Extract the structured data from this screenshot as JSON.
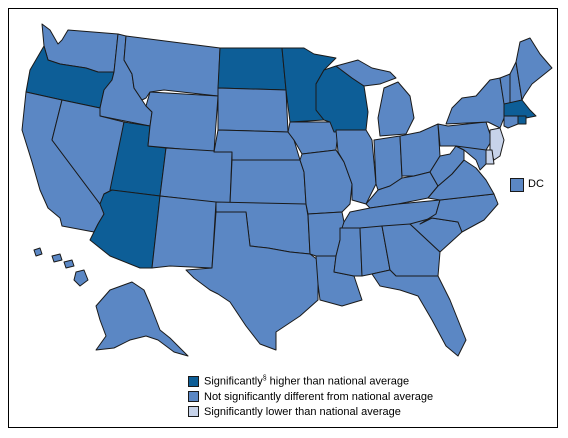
{
  "colors": {
    "higher": "#0d5e97",
    "not_different": "#5b87c4",
    "lower": "#c7d3ea",
    "outline": "#1a1a1a"
  },
  "legend": {
    "higher_prefix": "Significantly",
    "higher_superscript": "§",
    "higher_suffix": " higher than national average",
    "not_different": "Not significantly different from national average",
    "lower": "Significantly lower than national average"
  },
  "dc": {
    "label": "DC",
    "category": "not_different"
  },
  "states": {
    "WA": "not_different",
    "OR": "higher",
    "CA": "not_different",
    "ID": "not_different",
    "NV": "not_different",
    "UT": "higher",
    "AZ": "higher",
    "MT": "not_different",
    "WY": "not_different",
    "CO": "not_different",
    "NM": "not_different",
    "ND": "higher",
    "SD": "not_different",
    "NE": "not_different",
    "KS": "not_different",
    "OK": "not_different",
    "TX": "not_different",
    "MN": "higher",
    "IA": "not_different",
    "MO": "not_different",
    "AR": "not_different",
    "LA": "not_different",
    "WI": "higher",
    "IL": "not_different",
    "MI": "not_different",
    "IN": "not_different",
    "OH": "not_different",
    "KY": "not_different",
    "TN": "not_different",
    "MS": "not_different",
    "AL": "not_different",
    "GA": "not_different",
    "FL": "not_different",
    "SC": "not_different",
    "NC": "not_different",
    "VA": "not_different",
    "WV": "not_different",
    "PA": "not_different",
    "NY": "not_different",
    "VT": "not_different",
    "NH": "not_different",
    "ME": "not_different",
    "MA": "higher",
    "RI": "higher",
    "CT": "not_different",
    "NJ": "lower",
    "DE": "lower",
    "MD": "not_different",
    "AK": "not_different",
    "HI": "not_different"
  }
}
